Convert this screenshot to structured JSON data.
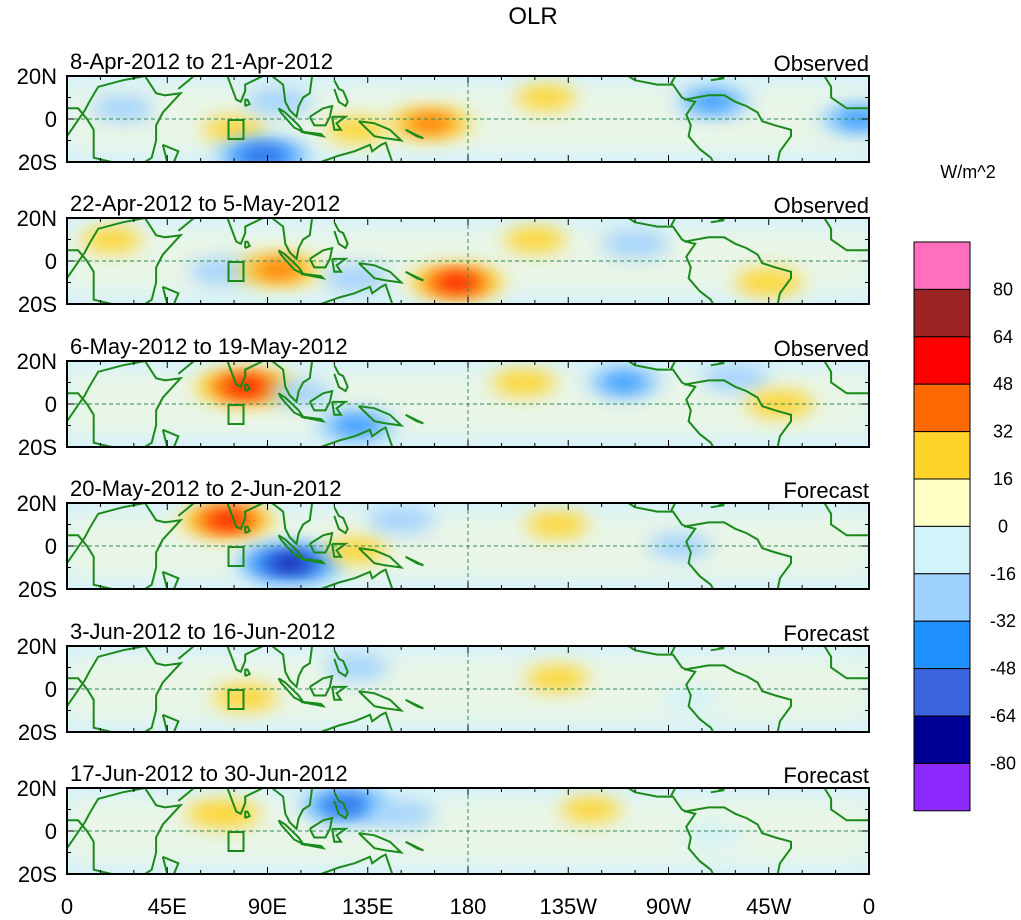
{
  "chart_data": {
    "type": "heatmap",
    "title": "OLR",
    "colorbar": {
      "unit_label": "W/m^2",
      "levels": [
        80,
        64,
        48,
        32,
        16,
        0,
        -16,
        -32,
        -48,
        -64,
        -80
      ],
      "colors": [
        "#ff6fbd",
        "#9c2424",
        "#ff0000",
        "#ff6a00",
        "#ffd42a",
        "#ffffc6",
        "#d2f3fa",
        "#a0d2ff",
        "#1e90ff",
        "#3c64dc",
        "#000096",
        "#8c2aff"
      ]
    },
    "x_ticks": [
      "0",
      "45E",
      "90E",
      "135E",
      "180",
      "135W",
      "90W",
      "45W",
      "0"
    ],
    "y_ticks": [
      "20N",
      "0",
      "20S"
    ],
    "panels": [
      {
        "date_range": "8-Apr-2012 to 21-Apr-2012",
        "type_label": "Observed",
        "anomalies": [
          {
            "lon": 25,
            "lat": 5,
            "value": -20
          },
          {
            "lon": 75,
            "lat": -5,
            "value": 20
          },
          {
            "lon": 88,
            "lat": -17,
            "value": -55
          },
          {
            "lon": 95,
            "lat": 8,
            "value": -25
          },
          {
            "lon": 130,
            "lat": -5,
            "value": 20
          },
          {
            "lon": 163,
            "lat": -2,
            "value": 40
          },
          {
            "lon": 215,
            "lat": 10,
            "value": 18
          },
          {
            "lon": 290,
            "lat": 8,
            "value": -35
          },
          {
            "lon": 355,
            "lat": 0,
            "value": -35
          }
        ]
      },
      {
        "date_range": "22-Apr-2012 to 5-May-2012",
        "type_label": "Observed",
        "anomalies": [
          {
            "lon": 20,
            "lat": 10,
            "value": 18
          },
          {
            "lon": 70,
            "lat": -5,
            "value": -25
          },
          {
            "lon": 95,
            "lat": -4,
            "value": 40
          },
          {
            "lon": 130,
            "lat": -8,
            "value": -25
          },
          {
            "lon": 175,
            "lat": -10,
            "value": 50
          },
          {
            "lon": 210,
            "lat": 10,
            "value": 20
          },
          {
            "lon": 255,
            "lat": 8,
            "value": -25
          },
          {
            "lon": 315,
            "lat": -10,
            "value": 25
          }
        ]
      },
      {
        "date_range": "6-May-2012 to 19-May-2012",
        "type_label": "Observed",
        "anomalies": [
          {
            "lon": 80,
            "lat": 8,
            "value": 55
          },
          {
            "lon": 105,
            "lat": 5,
            "value": -20
          },
          {
            "lon": 130,
            "lat": -10,
            "value": -40
          },
          {
            "lon": 205,
            "lat": 10,
            "value": 22
          },
          {
            "lon": 250,
            "lat": 10,
            "value": -35
          },
          {
            "lon": 300,
            "lat": 12,
            "value": -25
          },
          {
            "lon": 320,
            "lat": 0,
            "value": 25
          }
        ]
      },
      {
        "date_range": "20-May-2012 to 2-Jun-2012",
        "type_label": "Forecast",
        "anomalies": [
          {
            "lon": 72,
            "lat": 12,
            "value": 50
          },
          {
            "lon": 100,
            "lat": -8,
            "value": -65
          },
          {
            "lon": 130,
            "lat": -2,
            "value": 20
          },
          {
            "lon": 150,
            "lat": 12,
            "value": -25
          },
          {
            "lon": 220,
            "lat": 10,
            "value": 20
          },
          {
            "lon": 275,
            "lat": 0,
            "value": -20
          }
        ]
      },
      {
        "date_range": "3-Jun-2012 to 16-Jun-2012",
        "type_label": "Forecast",
        "anomalies": [
          {
            "lon": 80,
            "lat": -4,
            "value": 22
          },
          {
            "lon": 130,
            "lat": 10,
            "value": -22
          },
          {
            "lon": 220,
            "lat": 5,
            "value": 20
          },
          {
            "lon": 280,
            "lat": -5,
            "value": -15
          }
        ]
      },
      {
        "date_range": "17-Jun-2012 to 30-Jun-2012",
        "type_label": "Forecast",
        "anomalies": [
          {
            "lon": 70,
            "lat": 8,
            "value": 30
          },
          {
            "lon": 125,
            "lat": 12,
            "value": -50
          },
          {
            "lon": 150,
            "lat": 8,
            "value": -25
          },
          {
            "lon": 235,
            "lat": 10,
            "value": 18
          },
          {
            "lon": 290,
            "lat": -2,
            "value": -15
          }
        ]
      }
    ]
  }
}
